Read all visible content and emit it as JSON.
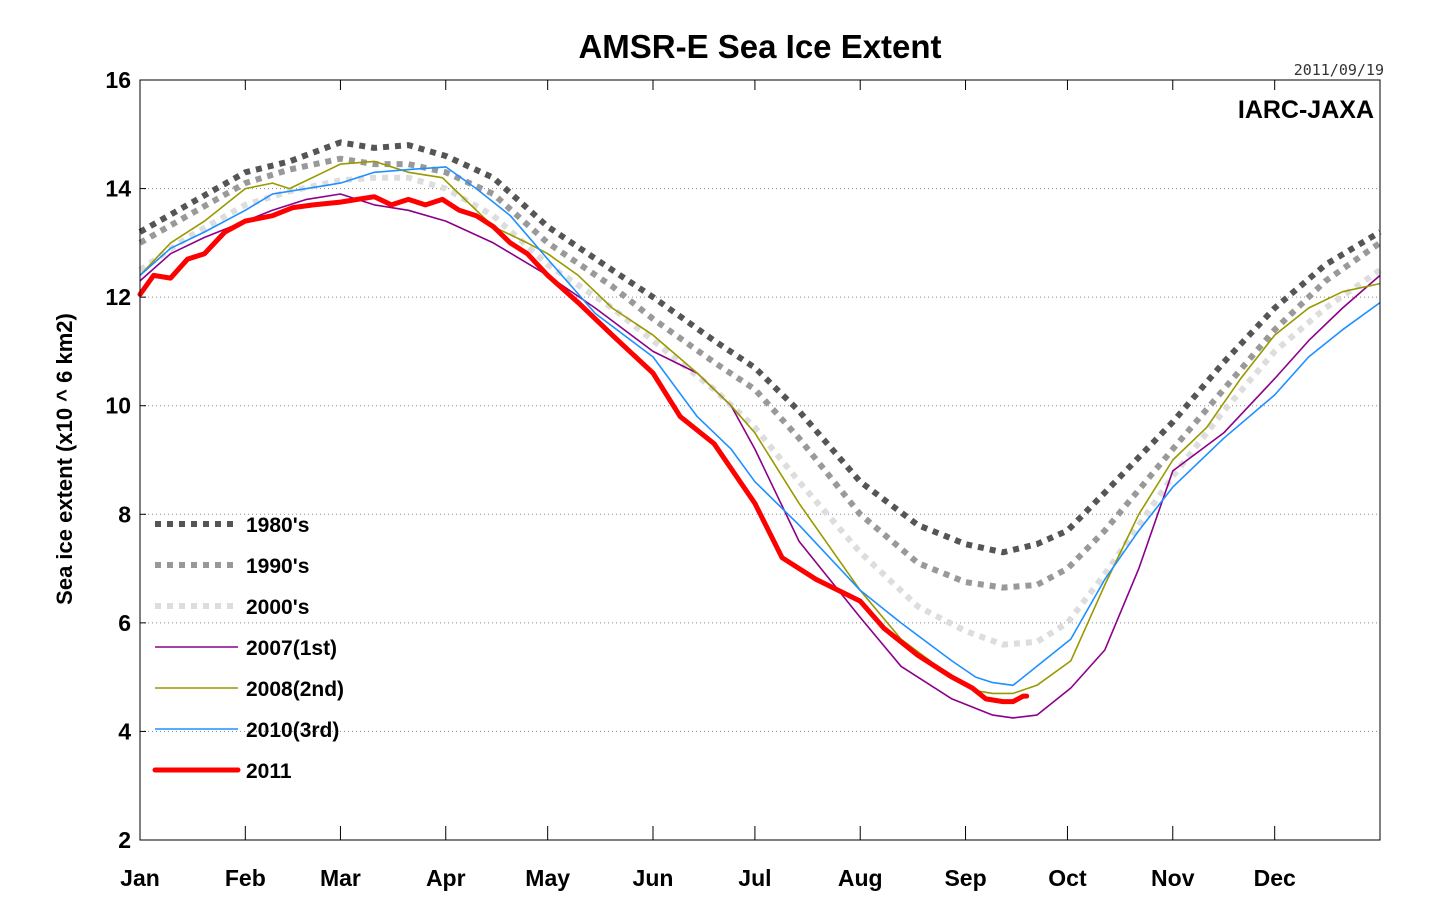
{
  "chart_data": {
    "type": "line",
    "title": "AMSR-E Sea Ice Extent",
    "date_label": "2011/09/19",
    "credit": "IARC-JAXA",
    "xlabel": "",
    "ylabel": "Sea ice extent (x10 ^ 6 km2)",
    "x_unit": "day of year",
    "xlim": [
      1,
      366
    ],
    "ylim": [
      2,
      16
    ],
    "yticks": [
      2,
      4,
      6,
      8,
      10,
      12,
      14,
      16
    ],
    "grid": "horizontal dotted",
    "legend_placement": "lower-left",
    "months": [
      {
        "label": "Jan",
        "day": 1
      },
      {
        "label": "Feb",
        "day": 32
      },
      {
        "label": "Mar",
        "day": 60
      },
      {
        "label": "Apr",
        "day": 91
      },
      {
        "label": "May",
        "day": 121
      },
      {
        "label": "Jun",
        "day": 152
      },
      {
        "label": "Jul",
        "day": 182
      },
      {
        "label": "Aug",
        "day": 213
      },
      {
        "label": "Sep",
        "day": 244
      },
      {
        "label": "Oct",
        "day": 274
      },
      {
        "label": "Nov",
        "day": 305
      },
      {
        "label": "Dec",
        "day": 335
      }
    ],
    "series": [
      {
        "name": "1980's",
        "color": "#555555",
        "style": "dotted",
        "x": [
          1,
          15,
          32,
          45,
          60,
          70,
          80,
          91,
          105,
          121,
          140,
          152,
          170,
          182,
          195,
          213,
          230,
          244,
          255,
          265,
          274,
          285,
          305,
          320,
          335,
          350,
          366
        ],
        "y": [
          13.2,
          13.7,
          14.3,
          14.5,
          14.85,
          14.75,
          14.8,
          14.6,
          14.2,
          13.3,
          12.5,
          12.0,
          11.2,
          10.7,
          9.9,
          8.6,
          7.8,
          7.45,
          7.3,
          7.45,
          7.7,
          8.4,
          9.7,
          10.8,
          11.8,
          12.6,
          13.2
        ]
      },
      {
        "name": "1990's",
        "color": "#999999",
        "style": "dotted",
        "x": [
          1,
          15,
          32,
          45,
          60,
          70,
          80,
          91,
          105,
          121,
          140,
          152,
          170,
          182,
          195,
          213,
          230,
          244,
          255,
          265,
          274,
          285,
          305,
          320,
          335,
          350,
          366
        ],
        "y": [
          13.0,
          13.5,
          14.1,
          14.35,
          14.55,
          14.45,
          14.45,
          14.3,
          13.9,
          13.0,
          12.2,
          11.6,
          10.8,
          10.3,
          9.4,
          8.0,
          7.1,
          6.75,
          6.65,
          6.7,
          7.0,
          7.7,
          9.2,
          10.3,
          11.4,
          12.3,
          13.0
        ]
      },
      {
        "name": "2000's",
        "color": "#dddddd",
        "style": "dotted",
        "x": [
          1,
          15,
          32,
          45,
          60,
          70,
          80,
          91,
          105,
          121,
          140,
          152,
          170,
          182,
          195,
          213,
          230,
          244,
          255,
          265,
          274,
          285,
          305,
          320,
          335,
          350,
          366
        ],
        "y": [
          12.5,
          13.1,
          13.7,
          13.95,
          14.15,
          14.2,
          14.2,
          14.0,
          13.5,
          12.6,
          11.8,
          11.2,
          10.3,
          9.6,
          8.6,
          7.3,
          6.3,
          5.85,
          5.6,
          5.65,
          6.0,
          6.9,
          8.7,
          9.9,
          11.0,
          11.8,
          12.5
        ]
      },
      {
        "name": "2007(1st)",
        "color": "#8B008B",
        "style": "solid",
        "x": [
          1,
          10,
          20,
          32,
          40,
          50,
          60,
          70,
          80,
          91,
          105,
          121,
          135,
          152,
          165,
          175,
          182,
          195,
          213,
          225,
          240,
          252,
          258,
          265,
          275,
          285,
          295,
          305,
          320,
          335,
          345,
          355,
          366
        ],
        "y": [
          12.3,
          12.8,
          13.1,
          13.4,
          13.6,
          13.8,
          13.9,
          13.7,
          13.6,
          13.4,
          13.0,
          12.4,
          11.8,
          11.0,
          10.6,
          10.0,
          9.2,
          7.5,
          6.1,
          5.2,
          4.6,
          4.3,
          4.25,
          4.3,
          4.8,
          5.5,
          7.0,
          8.8,
          9.5,
          10.5,
          11.2,
          11.8,
          12.4
        ]
      },
      {
        "name": "2008(2nd)",
        "color": "#999900",
        "style": "solid",
        "x": [
          1,
          10,
          20,
          32,
          40,
          45,
          55,
          60,
          70,
          80,
          90,
          95,
          105,
          115,
          121,
          130,
          140,
          152,
          165,
          175,
          182,
          195,
          213,
          225,
          240,
          247,
          252,
          258,
          265,
          275,
          285,
          295,
          305,
          315,
          325,
          335,
          345,
          355,
          366
        ],
        "y": [
          12.4,
          13.0,
          13.4,
          14.0,
          14.1,
          14.0,
          14.3,
          14.45,
          14.5,
          14.3,
          14.2,
          13.9,
          13.3,
          13.0,
          12.8,
          12.4,
          11.8,
          11.3,
          10.6,
          10.0,
          9.5,
          8.2,
          6.6,
          5.7,
          5.0,
          4.75,
          4.7,
          4.7,
          4.85,
          5.3,
          6.7,
          8.0,
          9.0,
          9.6,
          10.5,
          11.3,
          11.8,
          12.1,
          12.25
        ]
      },
      {
        "name": "2010(3rd)",
        "color": "#1E90FF",
        "style": "solid",
        "x": [
          1,
          10,
          20,
          32,
          40,
          50,
          60,
          70,
          80,
          91,
          100,
          110,
          121,
          135,
          152,
          165,
          175,
          182,
          195,
          213,
          225,
          240,
          247,
          252,
          258,
          265,
          275,
          285,
          295,
          305,
          320,
          335,
          345,
          355,
          366
        ],
        "y": [
          12.4,
          12.9,
          13.2,
          13.6,
          13.9,
          14.0,
          14.1,
          14.3,
          14.35,
          14.4,
          14.0,
          13.5,
          12.7,
          11.7,
          10.9,
          9.8,
          9.2,
          8.6,
          7.8,
          6.6,
          6.0,
          5.3,
          5.0,
          4.9,
          4.85,
          5.2,
          5.7,
          6.8,
          7.7,
          8.5,
          9.4,
          10.2,
          10.9,
          11.4,
          11.9
        ]
      },
      {
        "name": "2011",
        "color": "#ff0000",
        "style": "thick",
        "x": [
          1,
          5,
          10,
          15,
          20,
          26,
          32,
          40,
          46,
          52,
          60,
          65,
          70,
          75,
          80,
          85,
          90,
          95,
          100,
          105,
          110,
          115,
          121,
          130,
          140,
          152,
          160,
          170,
          182,
          190,
          200,
          213,
          220,
          230,
          240,
          246,
          250,
          255,
          258,
          261,
          262
        ],
        "y": [
          12.05,
          12.4,
          12.35,
          12.7,
          12.8,
          13.2,
          13.4,
          13.5,
          13.65,
          13.7,
          13.75,
          13.8,
          13.85,
          13.7,
          13.8,
          13.7,
          13.8,
          13.6,
          13.5,
          13.3,
          13.0,
          12.8,
          12.4,
          11.9,
          11.3,
          10.6,
          9.8,
          9.3,
          8.2,
          7.2,
          6.8,
          6.4,
          5.9,
          5.4,
          5.0,
          4.8,
          4.6,
          4.55,
          4.55,
          4.65,
          4.65
        ]
      }
    ]
  }
}
